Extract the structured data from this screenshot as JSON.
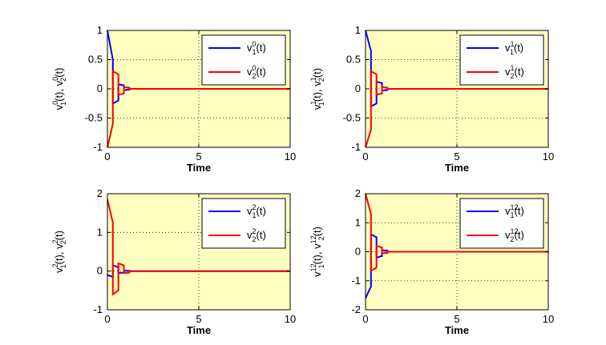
{
  "chart_data": [
    {
      "type": "line",
      "xlabel": "Time",
      "ylabel_parts": {
        "a": "v",
        "a_sup": "0",
        "a_sub": "1",
        "mid": "(t), ",
        "b": "v",
        "b_sup": "0",
        "b_sub": "2",
        "end": "(t)"
      },
      "xlim": [
        0,
        10
      ],
      "ylim": [
        -1,
        1
      ],
      "xticks": [
        "0",
        "5",
        "10"
      ],
      "yticks": [
        "-1",
        "-0.5",
        "0",
        "0.5",
        "1"
      ],
      "ytick_values": [
        -1,
        -0.5,
        0,
        0.5,
        1
      ],
      "grid": true,
      "legend_position": "top-right",
      "series": [
        {
          "label": {
            "base": "v",
            "sup": "0",
            "sub": "1",
            "tail": "(t)"
          },
          "color": "#0000ff",
          "x": [
            0,
            0.3,
            0.3,
            0.6,
            0.6,
            0.9,
            0.9,
            1.2,
            1.2,
            10
          ],
          "y": [
            1,
            0.5,
            -0.25,
            -0.2,
            0.08,
            0.06,
            -0.02,
            -0.015,
            0,
            0
          ]
        },
        {
          "label": {
            "base": "v",
            "sup": "0",
            "sub": "2",
            "tail": "(t)"
          },
          "color": "#ff0000",
          "x": [
            0,
            0.3,
            0.3,
            0.6,
            0.6,
            0.9,
            0.9,
            1.2,
            1.2,
            10
          ],
          "y": [
            -1,
            -0.6,
            0.3,
            0.25,
            -0.1,
            -0.08,
            0.03,
            0.02,
            0,
            0
          ]
        }
      ]
    },
    {
      "type": "line",
      "xlabel": "Time",
      "ylabel_parts": {
        "a": "v",
        "a_sup": "1",
        "a_sub": "1",
        "mid": "(t), ",
        "b": "v",
        "b_sup": "1",
        "b_sub": "2",
        "end": "(t)"
      },
      "xlim": [
        0,
        10
      ],
      "ylim": [
        -1,
        1
      ],
      "xticks": [
        "0",
        "5",
        "10"
      ],
      "yticks": [
        "-1",
        "-0.5",
        "0",
        "0.5",
        "1"
      ],
      "ytick_values": [
        -1,
        -0.5,
        0,
        0.5,
        1
      ],
      "grid": true,
      "legend_position": "top-right",
      "series": [
        {
          "label": {
            "base": "v",
            "sup": "1",
            "sub": "1",
            "tail": "(t)"
          },
          "color": "#0000ff",
          "x": [
            0,
            0.3,
            0.3,
            0.6,
            0.6,
            0.9,
            0.9,
            1.2,
            1.2,
            10
          ],
          "y": [
            1,
            0.65,
            -0.3,
            -0.25,
            0.12,
            0.1,
            -0.03,
            -0.02,
            0,
            0
          ]
        },
        {
          "label": {
            "base": "v",
            "sup": "1",
            "sub": "2",
            "tail": "(t)"
          },
          "color": "#ff0000",
          "x": [
            0,
            0.3,
            0.3,
            0.6,
            0.6,
            0.9,
            0.9,
            1.2,
            1.2,
            10
          ],
          "y": [
            -1,
            -0.7,
            0.3,
            0.25,
            -0.1,
            -0.08,
            0.03,
            0.02,
            0,
            0
          ]
        }
      ]
    },
    {
      "type": "line",
      "xlabel": "Time",
      "ylabel_parts": {
        "a": "v",
        "a_sup": "2",
        "a_sub": "1",
        "mid": "(t), ",
        "b": "v",
        "b_sup": "2",
        "b_sub": "2",
        "end": "(t)"
      },
      "xlim": [
        0,
        10
      ],
      "ylim": [
        -1,
        2
      ],
      "xticks": [
        "0",
        "5",
        "10"
      ],
      "yticks": [
        "-1",
        "0",
        "1",
        "2"
      ],
      "ytick_values": [
        -1,
        0,
        1,
        2
      ],
      "grid": true,
      "legend_position": "top-right",
      "series": [
        {
          "label": {
            "base": "v",
            "sup": "2",
            "sub": "1",
            "tail": "(t)"
          },
          "color": "#0000ff",
          "x": [
            0,
            0.3,
            0.3,
            0.6,
            0.6,
            0.9,
            0.9,
            1.2,
            1.2,
            10
          ],
          "y": [
            -0.1,
            -0.15,
            0.15,
            0.1,
            -0.05,
            -0.04,
            0.01,
            0.01,
            0,
            0
          ]
        },
        {
          "label": {
            "base": "v",
            "sup": "2",
            "sub": "2",
            "tail": "(t)"
          },
          "color": "#ff0000",
          "x": [
            0,
            0.3,
            0.3,
            0.6,
            0.6,
            0.9,
            0.9,
            1.2,
            1.2,
            10
          ],
          "y": [
            1.85,
            1.25,
            -0.6,
            -0.5,
            0.2,
            0.15,
            -0.05,
            -0.04,
            0,
            0
          ]
        }
      ]
    },
    {
      "type": "line",
      "xlabel": "Time",
      "ylabel_parts": {
        "a": "v",
        "a_sup": "12",
        "a_sub": "1",
        "mid": "(t), ",
        "b": "v",
        "b_sup": "12",
        "b_sub": "2",
        "end": "(t)"
      },
      "xlim": [
        0,
        10
      ],
      "ylim": [
        -2,
        2
      ],
      "xticks": [
        "0",
        "5",
        "10"
      ],
      "yticks": [
        "-2",
        "-1",
        "0",
        "1",
        "2"
      ],
      "ytick_values": [
        -2,
        -1,
        0,
        1,
        2
      ],
      "grid": true,
      "legend_position": "top-right",
      "series": [
        {
          "label": {
            "base": "v",
            "sup": "12",
            "sub": "1",
            "tail": "(t)"
          },
          "color": "#0000ff",
          "x": [
            0,
            0.3,
            0.3,
            0.6,
            0.6,
            0.9,
            0.9,
            1.2,
            1.2,
            10
          ],
          "y": [
            -1.6,
            -1.2,
            0.6,
            0.5,
            -0.2,
            -0.15,
            0.05,
            0.04,
            0,
            0
          ]
        },
        {
          "label": {
            "base": "v",
            "sup": "12",
            "sub": "2",
            "tail": "(t)"
          },
          "color": "#ff0000",
          "x": [
            0,
            0.3,
            0.3,
            0.6,
            0.6,
            0.9,
            0.9,
            1.2,
            1.2,
            10
          ],
          "y": [
            2,
            1.3,
            -0.65,
            -0.55,
            0.2,
            0.15,
            -0.05,
            -0.04,
            0,
            0
          ]
        }
      ]
    }
  ],
  "colors": {
    "plot_background": "#ffffc0",
    "frame": "#000000",
    "grid": "#000000"
  }
}
